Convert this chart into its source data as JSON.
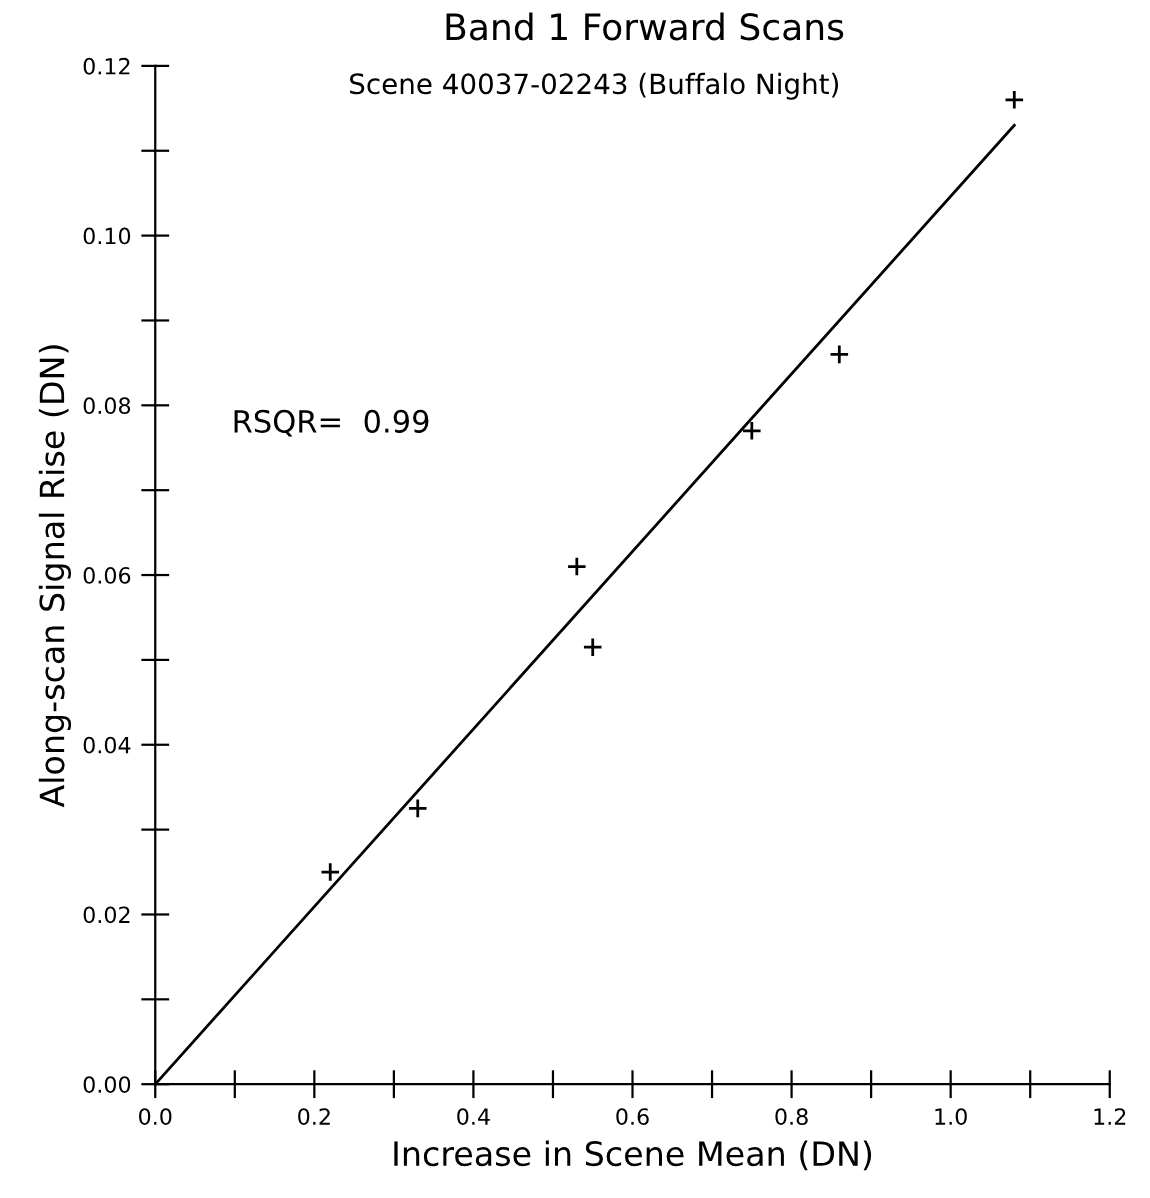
{
  "chart_data": {
    "type": "scatter",
    "title": "Band 1 Forward Scans",
    "subtitle": "Scene 40037-02243 (Buffalo Night)",
    "xlabel": "Increase in Scene Mean (DN)",
    "ylabel": "Along-scan Signal Rise (DN)",
    "annotations": [
      "RSQR=  0.99"
    ],
    "series": [
      {
        "type": "scatter",
        "color": "#000000",
        "marker": "cross",
        "x": [
          0.22,
          0.33,
          0.53,
          0.55,
          0.75,
          0.86,
          1.08
        ],
        "values": [
          0.025,
          0.0325,
          0.061,
          0.0515,
          0.077,
          0.086,
          0.116
        ]
      },
      {
        "type": "line",
        "color": "#000000",
        "x": [
          0.0,
          1.08
        ],
        "values": [
          0.0,
          0.113
        ]
      }
    ],
    "xlim": [
      0,
      1.2
    ],
    "ylim": [
      0,
      0.12
    ],
    "xticks": [
      {
        "value": 0,
        "label": "0.0"
      },
      {
        "value": 0.1,
        "label": null
      },
      0.2,
      {
        "value": 0.3,
        "label": null
      },
      0.4,
      {
        "value": 0.5,
        "label": null
      },
      0.6,
      {
        "value": 0.7,
        "label": null
      },
      0.8,
      {
        "value": 0.9,
        "label": null
      },
      {
        "value": 1,
        "label": "1.0"
      },
      {
        "value": 1.1,
        "label": null
      },
      1.2
    ],
    "yticks": [
      {
        "value": 0,
        "label": "0.00"
      },
      {
        "value": 0.01,
        "label": null
      },
      0.02,
      {
        "value": 0.03,
        "label": null
      },
      0.04,
      {
        "value": 0.05,
        "label": null
      },
      0.06,
      {
        "value": 0.07,
        "label": null
      },
      0.08,
      {
        "value": 0.09,
        "label": null
      },
      {
        "value": 0.1,
        "label": "0.10"
      },
      {
        "value": 0.11,
        "label": null
      },
      0.12
    ],
    "grid": false
  }
}
